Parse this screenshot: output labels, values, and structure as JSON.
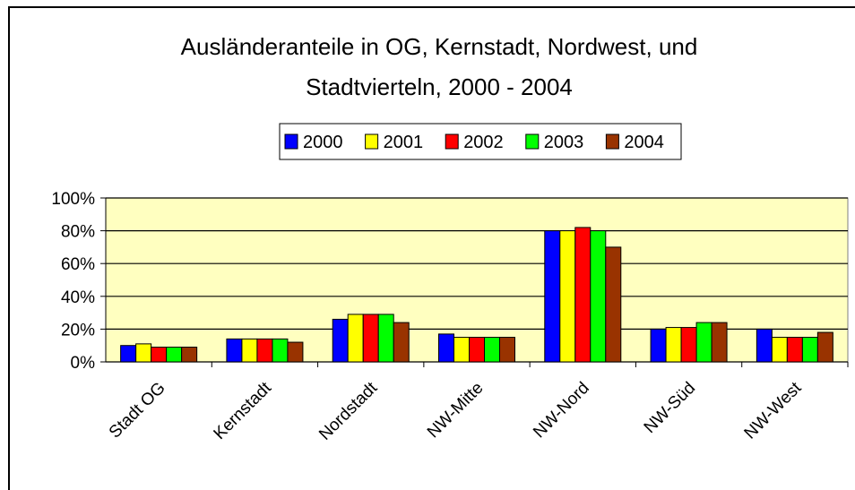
{
  "chart_data": {
    "type": "bar",
    "title": "Ausländeranteile in OG, Kernstadt, Nordwest, und Stadtvierteln, 2000 - 2004",
    "categories": [
      "Stadt OG",
      "Kernstadt",
      "Nordstadt",
      "NW-Mitte",
      "NW-Nord",
      "NW-Süd",
      "NW-West"
    ],
    "series": [
      {
        "name": "2000",
        "color": "#0000ff",
        "values": [
          10,
          14,
          26,
          17,
          80,
          20,
          20
        ]
      },
      {
        "name": "2001",
        "color": "#ffff00",
        "values": [
          11,
          14,
          29,
          15,
          80,
          21,
          15
        ]
      },
      {
        "name": "2002",
        "color": "#ff0000",
        "values": [
          9,
          14,
          29,
          15,
          82,
          21,
          15
        ]
      },
      {
        "name": "2003",
        "color": "#00ff00",
        "values": [
          9,
          14,
          29,
          15,
          80,
          24,
          15
        ]
      },
      {
        "name": "2004",
        "color": "#993300",
        "values": [
          9,
          12,
          24,
          15,
          70,
          24,
          18
        ]
      }
    ],
    "ylim": [
      0,
      100
    ],
    "yticks": [
      {
        "value": 0,
        "label": "0%"
      },
      {
        "value": 20,
        "label": "20%"
      },
      {
        "value": 40,
        "label": "40%"
      },
      {
        "value": 60,
        "label": "60%"
      },
      {
        "value": 80,
        "label": "80%"
      },
      {
        "value": 100,
        "label": "100%"
      }
    ],
    "grid": true,
    "legend": "top"
  }
}
